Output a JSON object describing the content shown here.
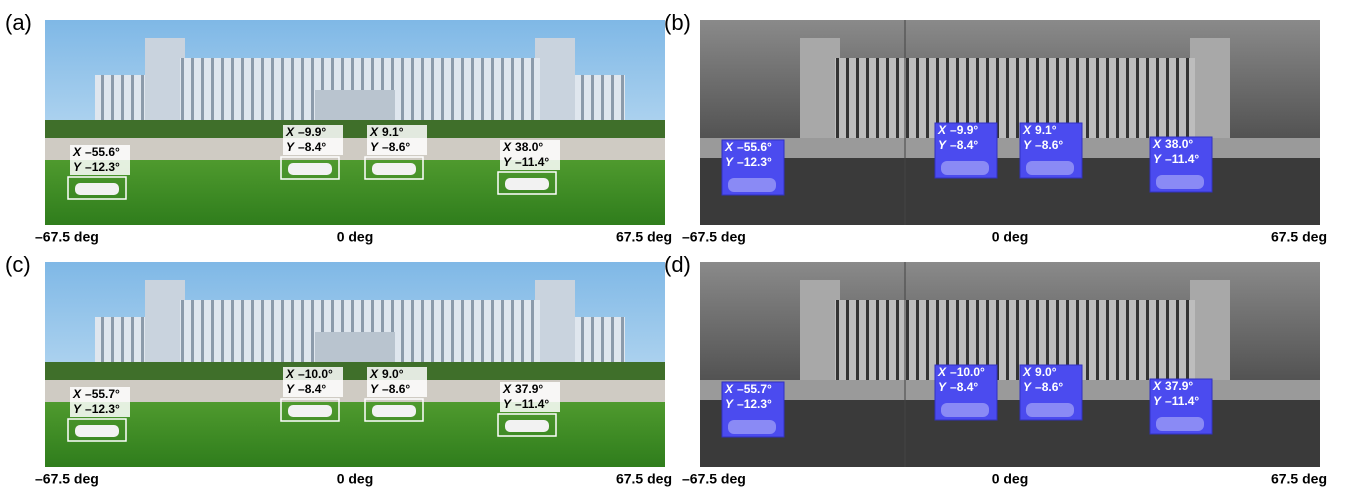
{
  "coord_labels": [
    "X",
    "Y"
  ],
  "panels": [
    {
      "label": "(a)",
      "axis": [
        "–67.5 deg",
        "0 deg",
        "67.5 deg"
      ],
      "annotations": [
        {
          "x": "–55.6°",
          "y": "–12.3°"
        },
        {
          "x": "–9.9°",
          "y": "–8.4°"
        },
        {
          "x": "9.1°",
          "y": "–8.6°"
        },
        {
          "x": "38.0°",
          "y": "–11.4°"
        }
      ]
    },
    {
      "label": "(b)",
      "axis": [
        "–67.5 deg",
        "0 deg",
        "67.5 deg"
      ],
      "annotations": [
        {
          "x": "–55.6°",
          "y": "–12.3°"
        },
        {
          "x": "–9.9°",
          "y": "–8.4°"
        },
        {
          "x": "9.1°",
          "y": "–8.6°"
        },
        {
          "x": "38.0°",
          "y": "–11.4°"
        }
      ]
    },
    {
      "label": "(c)",
      "axis": [
        "–67.5 deg",
        "0 deg",
        "67.5 deg"
      ],
      "annotations": [
        {
          "x": "–55.7°",
          "y": "–12.3°"
        },
        {
          "x": "–10.0°",
          "y": "–8.4°"
        },
        {
          "x": "9.0°",
          "y": "–8.6°"
        },
        {
          "x": "37.9°",
          "y": "–11.4°"
        }
      ]
    },
    {
      "label": "(d)",
      "axis": [
        "–67.5 deg",
        "0 deg",
        "67.5 deg"
      ],
      "annotations": [
        {
          "x": "–55.7°",
          "y": "–12.3°"
        },
        {
          "x": "–10.0°",
          "y": "–8.4°"
        },
        {
          "x": "9.0°",
          "y": "–8.6°"
        },
        {
          "x": "37.9°",
          "y": "–11.4°"
        }
      ]
    }
  ]
}
